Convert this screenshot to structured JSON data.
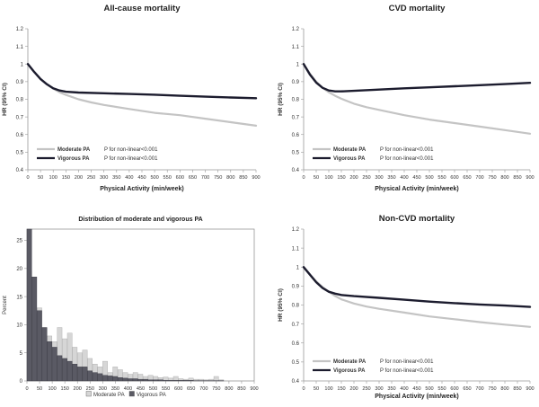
{
  "chart_data": [
    {
      "type": "line",
      "title": "All-cause mortality",
      "xlabel": "Physical Activity (min/week)",
      "ylabel": "HR (95% CI)",
      "xlim": [
        0,
        900
      ],
      "ylim": [
        0.4,
        1.2
      ],
      "xticks": [
        "0",
        "50",
        "100",
        "150",
        "200",
        "250",
        "300",
        "350",
        "400",
        "450",
        "500",
        "550",
        "600",
        "650",
        "700",
        "750",
        "800",
        "850",
        "900"
      ],
      "yticks": [
        "0.4",
        "0.5",
        "0.6",
        "0.7",
        "0.8",
        "0.9",
        "1",
        "1.1",
        "1.2"
      ],
      "legend_position": "bottom-left",
      "series": [
        {
          "name": "Moderate PA",
          "note": "P for non-linear<0.001",
          "color": "#c4c4c4",
          "x": [
            0,
            25,
            50,
            75,
            100,
            125,
            150,
            200,
            250,
            300,
            400,
            500,
            600,
            700,
            800,
            900
          ],
          "y": [
            1.0,
            0.955,
            0.915,
            0.885,
            0.86,
            0.84,
            0.825,
            0.8,
            0.782,
            0.768,
            0.745,
            0.723,
            0.71,
            0.69,
            0.67,
            0.65
          ]
        },
        {
          "name": "Vigorous PA",
          "note": "P for non-linear<0.001",
          "color": "#1c1c2e",
          "x": [
            0,
            25,
            50,
            75,
            100,
            125,
            150,
            200,
            300,
            400,
            500,
            600,
            700,
            800,
            900
          ],
          "y": [
            1.0,
            0.955,
            0.915,
            0.885,
            0.862,
            0.85,
            0.843,
            0.838,
            0.834,
            0.83,
            0.826,
            0.82,
            0.815,
            0.81,
            0.806
          ]
        }
      ]
    },
    {
      "type": "line",
      "title": "CVD mortality",
      "xlabel": "Physical Activity (min/week)",
      "ylabel": "HR (95% CI)",
      "xlim": [
        0,
        900
      ],
      "ylim": [
        0.4,
        1.2
      ],
      "xticks": [
        "0",
        "50",
        "100",
        "150",
        "200",
        "250",
        "300",
        "350",
        "400",
        "450",
        "500",
        "550",
        "600",
        "650",
        "700",
        "750",
        "800",
        "850",
        "900"
      ],
      "yticks": [
        "0.4",
        "0.5",
        "0.6",
        "0.7",
        "0.8",
        "0.9",
        "1",
        "1.1",
        "1.2"
      ],
      "legend_position": "bottom-left",
      "series": [
        {
          "name": "Moderate PA",
          "note": "P for non-linear<0.001",
          "color": "#c4c4c4",
          "x": [
            0,
            25,
            50,
            75,
            100,
            125,
            150,
            200,
            250,
            300,
            400,
            500,
            600,
            700,
            800,
            900
          ],
          "y": [
            1.0,
            0.945,
            0.9,
            0.865,
            0.84,
            0.82,
            0.803,
            0.775,
            0.755,
            0.74,
            0.71,
            0.685,
            0.665,
            0.645,
            0.625,
            0.605
          ]
        },
        {
          "name": "Vigorous PA",
          "note": "P for non-linear<0.001",
          "color": "#1c1c2e",
          "x": [
            0,
            25,
            50,
            75,
            100,
            125,
            150,
            200,
            300,
            400,
            500,
            600,
            700,
            800,
            900
          ],
          "y": [
            1.0,
            0.94,
            0.895,
            0.865,
            0.85,
            0.845,
            0.845,
            0.848,
            0.855,
            0.862,
            0.868,
            0.874,
            0.88,
            0.886,
            0.893
          ]
        }
      ]
    },
    {
      "type": "bar",
      "title": "Distribution of moderate and vigorous PA",
      "xlabel": "",
      "ylabel": "Percent",
      "xlim": [
        0,
        900
      ],
      "ylim": [
        0,
        27
      ],
      "xticks": [
        "0",
        "50",
        "100",
        "150",
        "200",
        "250",
        "300",
        "350",
        "400",
        "450",
        "500",
        "550",
        "600",
        "650",
        "700",
        "750",
        "800",
        "850",
        "900"
      ],
      "yticks": [
        "0",
        "5",
        "10",
        "15",
        "20",
        "25"
      ],
      "bin_width": 20,
      "legend_position": "bottom",
      "series": [
        {
          "name": "Moderate PA",
          "color": "#d6d6d6",
          "x": [
            0,
            20,
            40,
            60,
            80,
            100,
            120,
            140,
            160,
            180,
            200,
            220,
            240,
            260,
            280,
            300,
            320,
            340,
            360,
            380,
            400,
            420,
            440,
            460,
            480,
            500,
            520,
            540,
            560,
            580,
            600,
            620,
            640,
            660,
            680,
            700,
            720,
            740,
            760
          ],
          "values": [
            19.5,
            12.0,
            13.0,
            9.5,
            8.0,
            7.0,
            9.5,
            7.5,
            8.5,
            6.0,
            5.0,
            5.5,
            4.0,
            3.0,
            2.5,
            3.5,
            1.5,
            2.5,
            2.0,
            1.5,
            1.2,
            1.5,
            1.2,
            0.8,
            1.0,
            0.8,
            0.6,
            0.7,
            0.5,
            0.8,
            0.4,
            0.3,
            0.5,
            0.3,
            0.3,
            0.2,
            0.3,
            0.8,
            0.2
          ]
        },
        {
          "name": "Vigorous PA",
          "color": "#5a5a64",
          "x": [
            0,
            20,
            40,
            60,
            80,
            100,
            120,
            140,
            160,
            180,
            200,
            220,
            240,
            260,
            280,
            300,
            320,
            340,
            360,
            380,
            400,
            420,
            440,
            460,
            480,
            500,
            520,
            540,
            560,
            580,
            600,
            620,
            640,
            660,
            680,
            700,
            720,
            740,
            760
          ],
          "values": [
            27.5,
            18.5,
            12.5,
            9.5,
            7.0,
            6.0,
            4.5,
            4.0,
            3.5,
            3.0,
            2.5,
            2.5,
            1.8,
            1.5,
            1.3,
            1.0,
            0.9,
            0.8,
            0.6,
            0.5,
            0.4,
            0.4,
            0.3,
            0.3,
            0.2,
            0.2,
            0.2,
            0.1,
            0.1,
            0.1,
            0.1,
            0.1,
            0.1,
            0.05,
            0.05,
            0.05,
            0.05,
            0.05,
            0.05
          ]
        }
      ]
    },
    {
      "type": "line",
      "title": "Non-CVD mortality",
      "xlabel": "Physical Activity (min/week)",
      "ylabel": "HR (95% CI)",
      "xlim": [
        0,
        900
      ],
      "ylim": [
        0.4,
        1.2
      ],
      "xticks": [
        "0",
        "50",
        "100",
        "150",
        "200",
        "250",
        "300",
        "350",
        "400",
        "450",
        "500",
        "550",
        "600",
        "650",
        "700",
        "750",
        "800",
        "850",
        "900"
      ],
      "yticks": [
        "0.4",
        "0.5",
        "0.6",
        "0.7",
        "0.8",
        "0.9",
        "1",
        "1.1",
        "1.2"
      ],
      "legend_position": "bottom-left",
      "series": [
        {
          "name": "Moderate PA",
          "note": "P for non-linear<0.001",
          "color": "#c4c4c4",
          "x": [
            0,
            25,
            50,
            75,
            100,
            125,
            150,
            200,
            250,
            300,
            400,
            500,
            600,
            700,
            800,
            900
          ],
          "y": [
            1.0,
            0.96,
            0.925,
            0.895,
            0.87,
            0.848,
            0.83,
            0.808,
            0.792,
            0.78,
            0.76,
            0.74,
            0.725,
            0.71,
            0.697,
            0.685
          ]
        },
        {
          "name": "Vigorous PA",
          "note": "P for non-linear<0.001",
          "color": "#1c1c2e",
          "x": [
            0,
            25,
            50,
            75,
            100,
            125,
            150,
            200,
            300,
            400,
            500,
            600,
            700,
            800,
            900
          ],
          "y": [
            1.0,
            0.96,
            0.92,
            0.89,
            0.87,
            0.86,
            0.853,
            0.847,
            0.838,
            0.828,
            0.818,
            0.81,
            0.803,
            0.797,
            0.79
          ]
        }
      ]
    }
  ]
}
